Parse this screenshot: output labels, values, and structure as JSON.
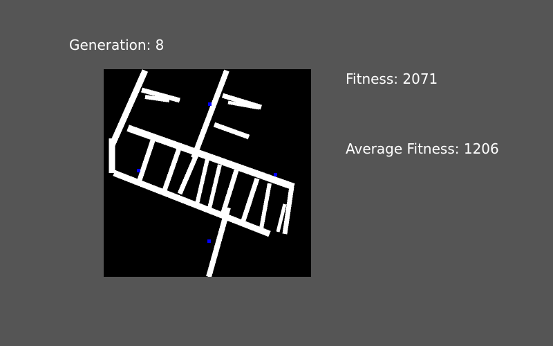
{
  "hud": {
    "generation_label": "Generation:",
    "generation_value": "8",
    "fitness_label": "Fitness:",
    "fitness_value": "2071",
    "average_fitness_label": "Average Fitness:",
    "average_fitness_value": "1206"
  },
  "colors": {
    "background": "#555555",
    "grid_background": "#000000",
    "path": "#ffffff",
    "agent": "#0000ff"
  },
  "world": {
    "agent_count": 4,
    "pattern": "evolved white path lattice on black grid"
  }
}
